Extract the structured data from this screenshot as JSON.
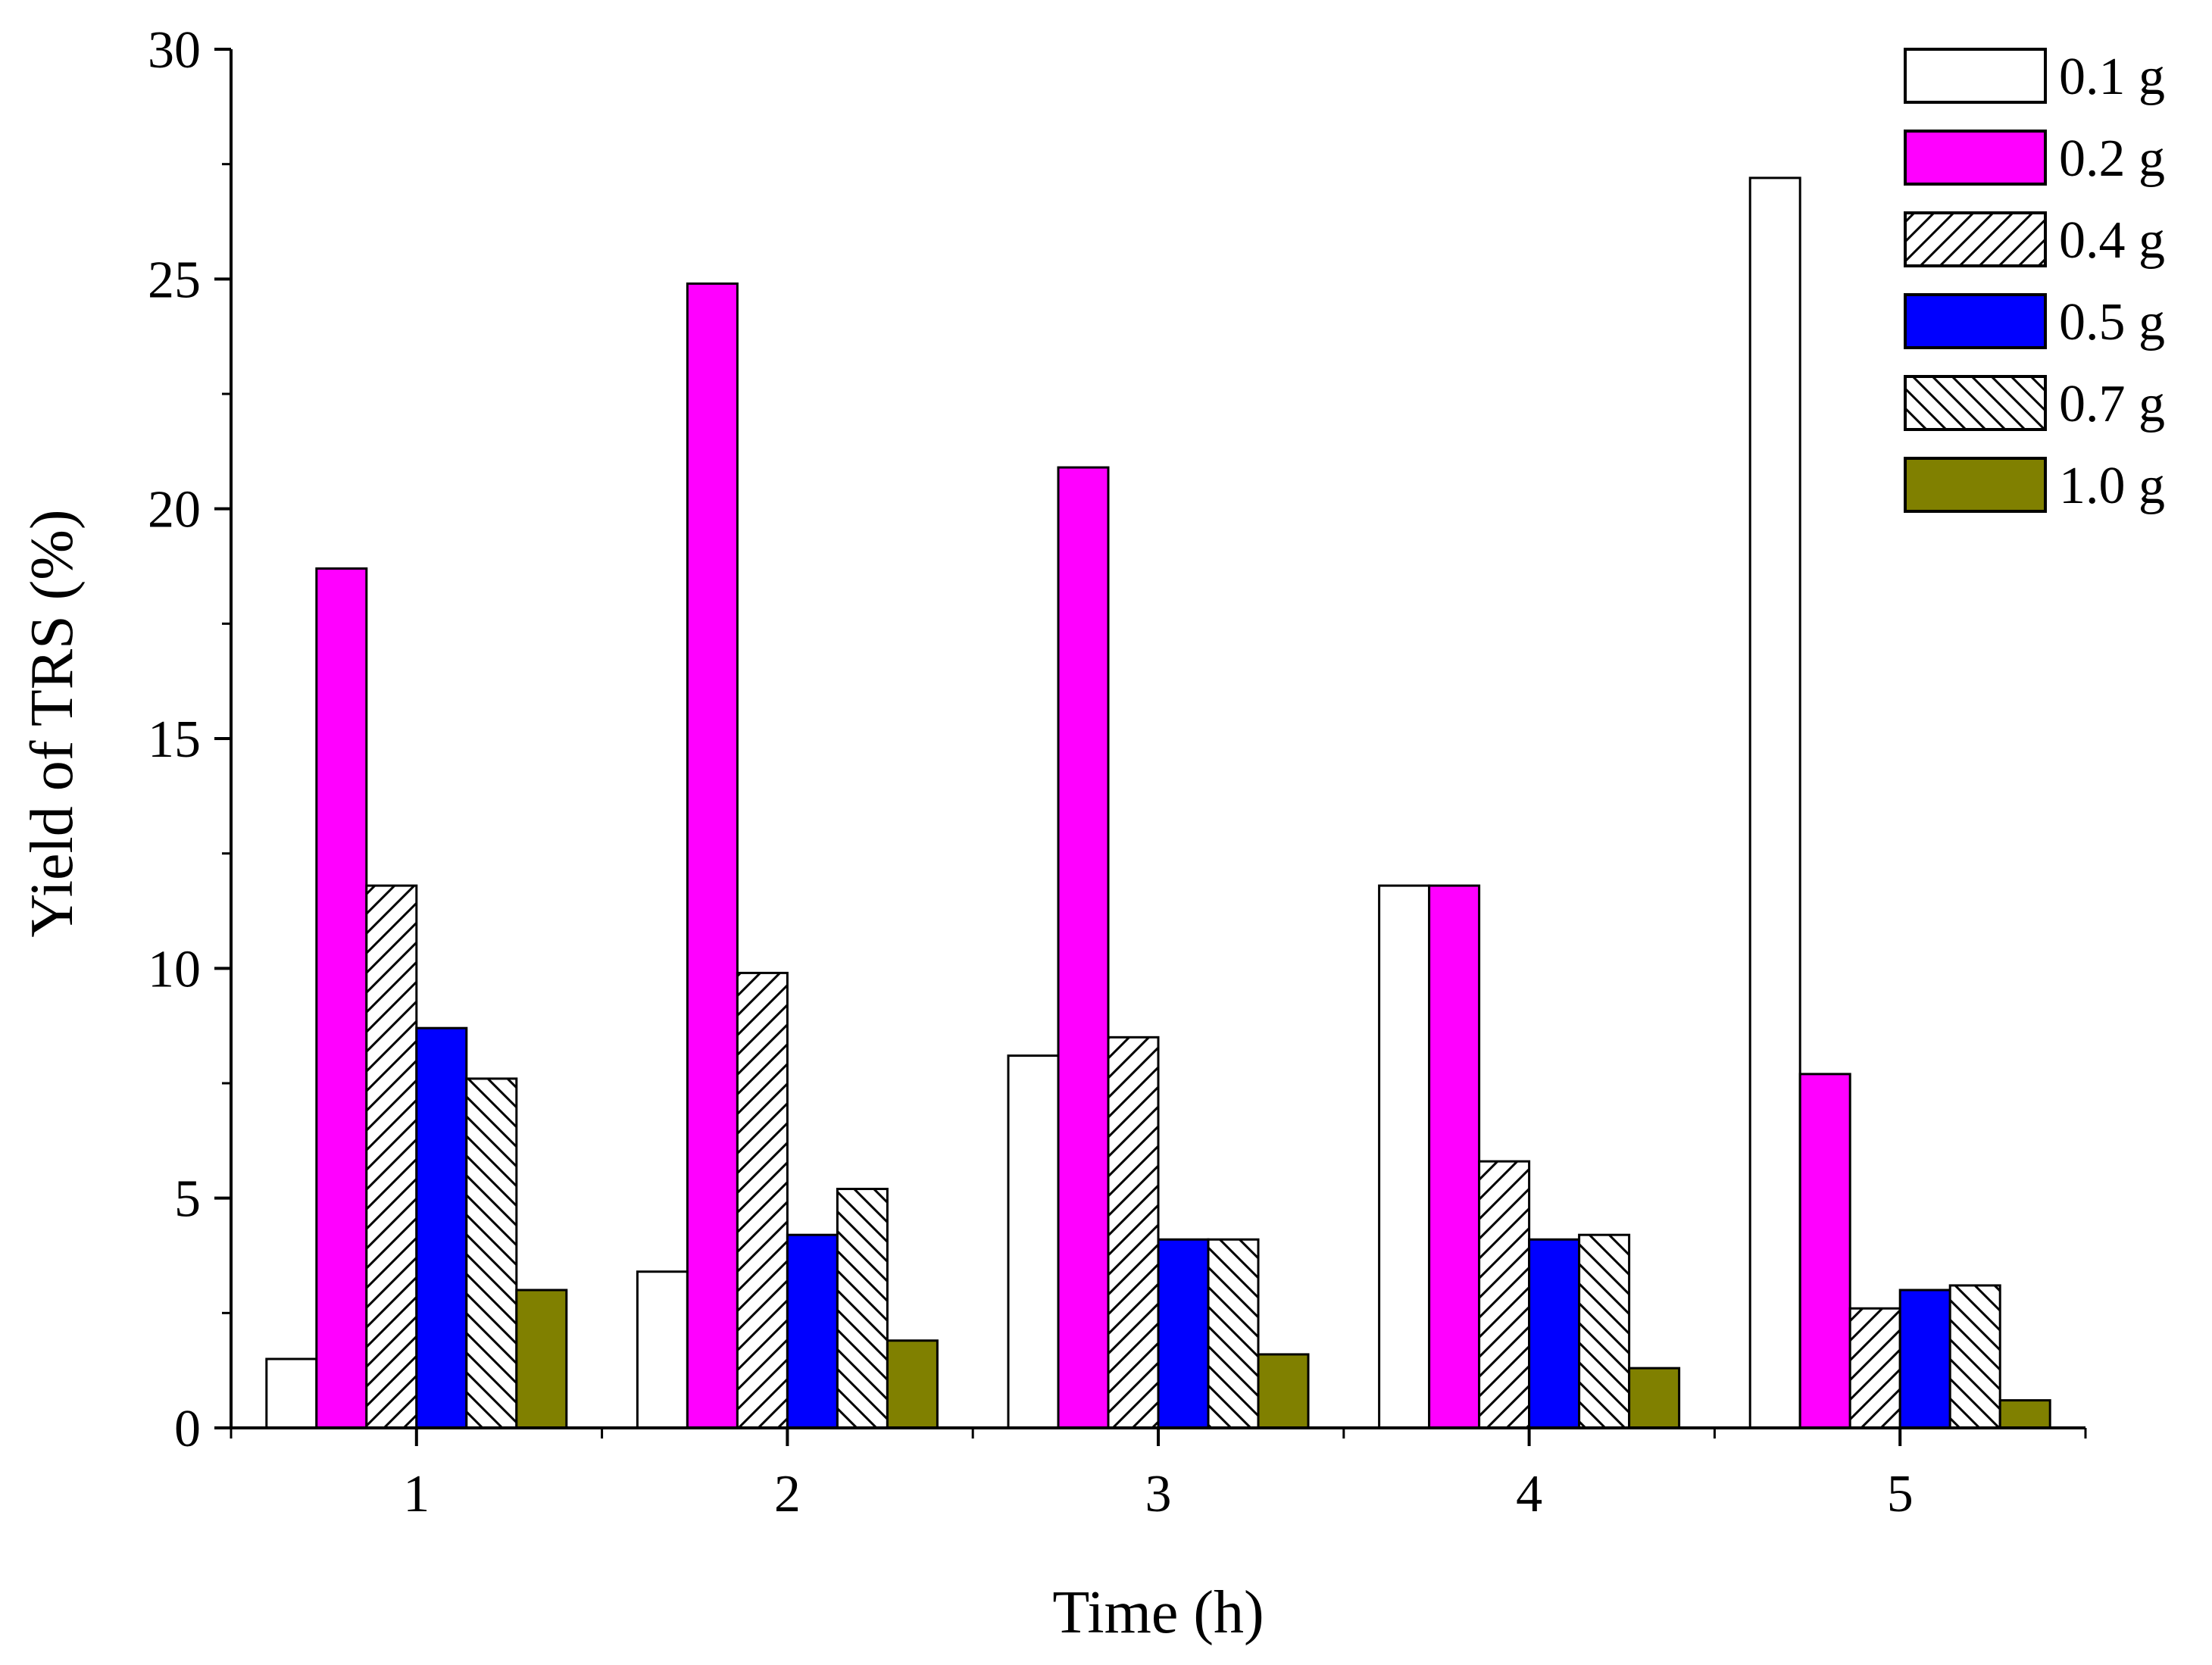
{
  "chart_data": {
    "type": "bar",
    "title": "",
    "xlabel": "Time (h)",
    "ylabel": "Yield of TRS (%)",
    "categories": [
      "1",
      "2",
      "3",
      "4",
      "5"
    ],
    "ylim": [
      0,
      30
    ],
    "yticks": [
      "0",
      "5",
      "10",
      "15",
      "20",
      "25",
      "30"
    ],
    "legend_position": "top-right",
    "grid": false,
    "series": [
      {
        "name": "0.1 g",
        "fill": "#ffffff",
        "pattern": "none",
        "values": [
          1.5,
          3.4,
          8.1,
          11.8,
          27.2
        ]
      },
      {
        "name": "0.2 g",
        "fill": "#ff00ff",
        "pattern": "none",
        "values": [
          18.7,
          24.9,
          20.9,
          11.8,
          7.7
        ]
      },
      {
        "name": "0.4 g",
        "fill": "#ffffff",
        "pattern": "hatch-forward",
        "values": [
          11.8,
          9.9,
          8.5,
          5.8,
          2.6
        ]
      },
      {
        "name": "0.5 g",
        "fill": "#0000ff",
        "pattern": "none",
        "values": [
          8.7,
          4.2,
          4.1,
          4.1,
          3.0
        ]
      },
      {
        "name": "0.7 g",
        "fill": "#ffffff",
        "pattern": "hatch-back",
        "values": [
          7.6,
          5.2,
          4.1,
          4.2,
          3.1
        ]
      },
      {
        "name": "1.0 g",
        "fill": "#808000",
        "pattern": "none",
        "values": [
          3.0,
          1.9,
          1.6,
          1.3,
          0.6
        ]
      }
    ]
  }
}
